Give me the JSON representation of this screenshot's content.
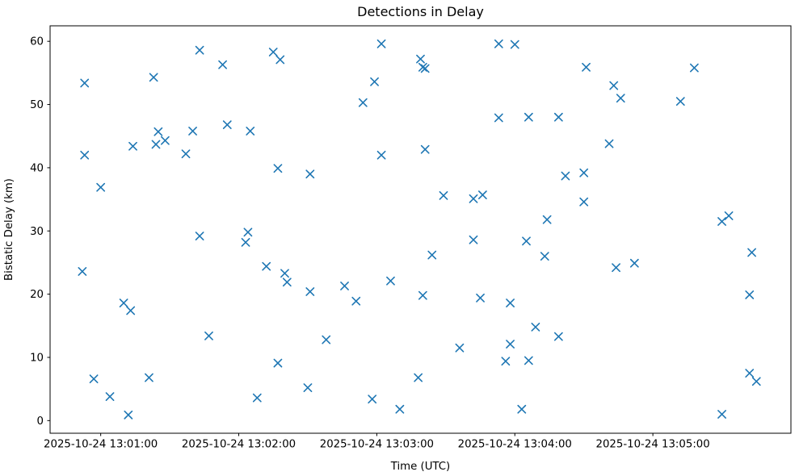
{
  "window": {
    "background": "#ffffff"
  },
  "chart_data": {
    "type": "scatter",
    "title": "Detections in Delay",
    "xlabel": "Time (UTC)",
    "ylabel": "Bistatic Delay (km)",
    "marker": "x",
    "marker_color": "#1f77b4",
    "marker_size_px": 4.6,
    "marker_stroke_px": 1.6,
    "axis_color": "#000000",
    "grid": false,
    "legend_position": "none",
    "x_date": "2025-10-24",
    "x_ticks": [
      {
        "label": "2025-10-24 13:01:00",
        "time": "13:01:00"
      },
      {
        "label": "2025-10-24 13:02:00",
        "time": "13:02:00"
      },
      {
        "label": "2025-10-24 13:03:00",
        "time": "13:03:00"
      },
      {
        "label": "2025-10-24 13:04:00",
        "time": "13:04:00"
      },
      {
        "label": "2025-10-24 13:05:00",
        "time": "13:05:00"
      }
    ],
    "y_ticks": [
      0,
      10,
      20,
      30,
      40,
      50,
      60
    ],
    "xlim_seconds_after_1300": [
      38,
      360
    ],
    "ylim": [
      -2.0,
      62.45
    ],
    "points_time_delay": [
      [
        "13:00:52",
        23.6
      ],
      [
        "13:00:53",
        53.4
      ],
      [
        "13:00:53",
        42.0
      ],
      [
        "13:00:57",
        6.6
      ],
      [
        "13:01:00",
        36.9
      ],
      [
        "13:01:04",
        3.8
      ],
      [
        "13:01:10",
        18.6
      ],
      [
        "13:01:12",
        0.9
      ],
      [
        "13:01:13",
        17.4
      ],
      [
        "13:01:14",
        43.4
      ],
      [
        "13:01:21",
        6.8
      ],
      [
        "13:01:23",
        54.3
      ],
      [
        "13:01:24",
        43.7
      ],
      [
        "13:01:25",
        45.7
      ],
      [
        "13:01:28",
        44.3
      ],
      [
        "13:01:37",
        42.2
      ],
      [
        "13:01:40",
        45.8
      ],
      [
        "13:01:43",
        29.2
      ],
      [
        "13:01:43",
        58.6
      ],
      [
        "13:01:47",
        13.4
      ],
      [
        "13:01:53",
        56.3
      ],
      [
        "13:01:55",
        46.8
      ],
      [
        "13:02:03",
        28.2
      ],
      [
        "13:02:04",
        29.8
      ],
      [
        "13:02:05",
        45.8
      ],
      [
        "13:02:08",
        3.6
      ],
      [
        "13:02:12",
        24.4
      ],
      [
        "13:02:15",
        58.3
      ],
      [
        "13:02:17",
        9.1
      ],
      [
        "13:02:17",
        39.9
      ],
      [
        "13:02:18",
        57.1
      ],
      [
        "13:02:20",
        23.3
      ],
      [
        "13:02:21",
        21.9
      ],
      [
        "13:02:30",
        5.2
      ],
      [
        "13:02:31",
        39.0
      ],
      [
        "13:02:31",
        20.4
      ],
      [
        "13:02:38",
        12.8
      ],
      [
        "13:02:46",
        21.3
      ],
      [
        "13:02:51",
        18.9
      ],
      [
        "13:02:54",
        50.3
      ],
      [
        "13:02:58",
        3.4
      ],
      [
        "13:02:59",
        53.6
      ],
      [
        "13:03:02",
        59.6
      ],
      [
        "13:03:02",
        42.0
      ],
      [
        "13:03:06",
        22.1
      ],
      [
        "13:03:10",
        1.8
      ],
      [
        "13:03:18",
        6.8
      ],
      [
        "13:03:19",
        57.2
      ],
      [
        "13:03:20",
        19.8
      ],
      [
        "13:03:20",
        55.9
      ],
      [
        "13:03:21",
        55.7
      ],
      [
        "13:03:21",
        42.9
      ],
      [
        "13:03:24",
        26.2
      ],
      [
        "13:03:29",
        35.6
      ],
      [
        "13:03:36",
        11.5
      ],
      [
        "13:03:42",
        28.6
      ],
      [
        "13:03:42",
        35.1
      ],
      [
        "13:03:45",
        19.4
      ],
      [
        "13:03:46",
        35.7
      ],
      [
        "13:03:53",
        59.6
      ],
      [
        "13:03:53",
        47.9
      ],
      [
        "13:03:56",
        9.4
      ],
      [
        "13:03:58",
        12.1
      ],
      [
        "13:03:58",
        18.6
      ],
      [
        "13:04:00",
        59.5
      ],
      [
        "13:04:03",
        1.8
      ],
      [
        "13:04:05",
        28.4
      ],
      [
        "13:04:06",
        9.5
      ],
      [
        "13:04:06",
        48.0
      ],
      [
        "13:04:09",
        14.8
      ],
      [
        "13:04:13",
        26.0
      ],
      [
        "13:04:14",
        31.8
      ],
      [
        "13:04:19",
        48.0
      ],
      [
        "13:04:19",
        13.3
      ],
      [
        "13:04:22",
        38.7
      ],
      [
        "13:04:30",
        39.2
      ],
      [
        "13:04:30",
        34.6
      ],
      [
        "13:04:31",
        55.9
      ],
      [
        "13:04:41",
        43.8
      ],
      [
        "13:04:43",
        53.0
      ],
      [
        "13:04:44",
        24.2
      ],
      [
        "13:04:46",
        51.0
      ],
      [
        "13:04:52",
        24.9
      ],
      [
        "13:05:12",
        50.5
      ],
      [
        "13:05:18",
        55.8
      ],
      [
        "13:05:30",
        1.0
      ],
      [
        "13:05:30",
        31.5
      ],
      [
        "13:05:33",
        32.4
      ],
      [
        "13:05:42",
        7.5
      ],
      [
        "13:05:42",
        19.9
      ],
      [
        "13:05:43",
        26.6
      ],
      [
        "13:05:45",
        6.2
      ]
    ]
  }
}
